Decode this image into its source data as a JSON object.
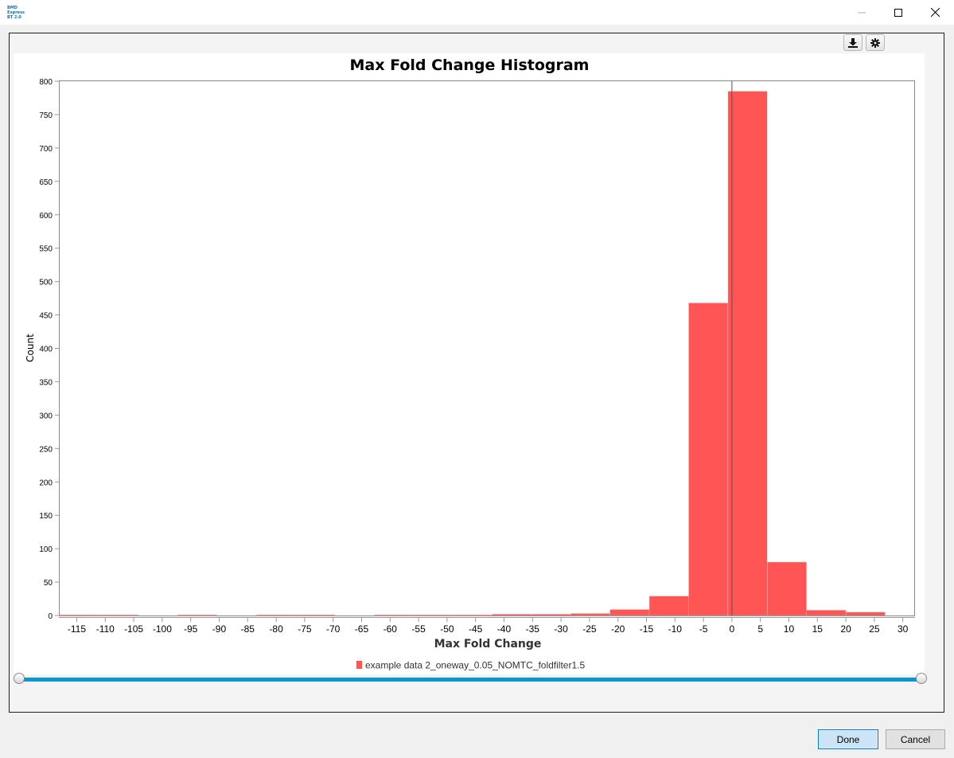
{
  "window": {
    "logo_lines": [
      "BMD",
      "Express",
      "BT 2.0"
    ],
    "minimize_icon": "minimize-icon",
    "maximize_icon": "maximize-icon",
    "close_icon": "close-icon"
  },
  "toolbar": {
    "download_icon": "download-icon",
    "settings_icon": "gear-icon"
  },
  "chart_data": {
    "type": "bar",
    "title": "Max Fold Change Histogram",
    "xlabel": "Max Fold Change",
    "ylabel": "Count",
    "xlim": [
      -118,
      32
    ],
    "ylim": [
      0,
      800
    ],
    "x_ticks": [
      -115,
      -110,
      -105,
      -100,
      -95,
      -90,
      -85,
      -80,
      -75,
      -70,
      -65,
      -60,
      -55,
      -50,
      -45,
      -40,
      -35,
      -30,
      -25,
      -20,
      -15,
      -10,
      -5,
      0,
      5,
      10,
      15,
      20,
      25,
      30
    ],
    "y_ticks": [
      0,
      50,
      100,
      150,
      200,
      250,
      300,
      350,
      400,
      450,
      500,
      550,
      600,
      650,
      700,
      750,
      800
    ],
    "bin_width": 6.9,
    "series": [
      {
        "name": "example data 2_oneway_0.05_NOMTC_foldfilter1.5",
        "bins": [
          {
            "x_start": -118.0,
            "x_end": -111.1,
            "count": 1
          },
          {
            "x_start": -111.1,
            "x_end": -104.2,
            "count": 1
          },
          {
            "x_start": -104.2,
            "x_end": -97.3,
            "count": 0
          },
          {
            "x_start": -97.3,
            "x_end": -90.4,
            "count": 1
          },
          {
            "x_start": -90.4,
            "x_end": -83.5,
            "count": 0
          },
          {
            "x_start": -83.5,
            "x_end": -76.6,
            "count": 1
          },
          {
            "x_start": -76.6,
            "x_end": -69.7,
            "count": 1
          },
          {
            "x_start": -69.7,
            "x_end": -62.8,
            "count": 0
          },
          {
            "x_start": -62.8,
            "x_end": -55.9,
            "count": 1
          },
          {
            "x_start": -55.9,
            "x_end": -49.0,
            "count": 1
          },
          {
            "x_start": -49.0,
            "x_end": -42.1,
            "count": 1
          },
          {
            "x_start": -42.1,
            "x_end": -35.2,
            "count": 2
          },
          {
            "x_start": -35.2,
            "x_end": -28.3,
            "count": 2
          },
          {
            "x_start": -28.3,
            "x_end": -21.4,
            "count": 3
          },
          {
            "x_start": -21.4,
            "x_end": -14.5,
            "count": 9
          },
          {
            "x_start": -14.5,
            "x_end": -7.6,
            "count": 29
          },
          {
            "x_start": -7.6,
            "x_end": -0.7,
            "count": 468
          },
          {
            "x_start": -0.7,
            "x_end": 6.2,
            "count": 785
          },
          {
            "x_start": 6.2,
            "x_end": 13.1,
            "count": 80
          },
          {
            "x_start": 13.1,
            "x_end": 20.0,
            "count": 8
          },
          {
            "x_start": 20.0,
            "x_end": 26.9,
            "count": 5
          }
        ]
      }
    ],
    "colors": {
      "bar": "#ff5555",
      "slider": "#0a96d2"
    },
    "grid": false,
    "legend_position": "bottom"
  },
  "buttons": {
    "done": "Done",
    "cancel": "Cancel"
  }
}
